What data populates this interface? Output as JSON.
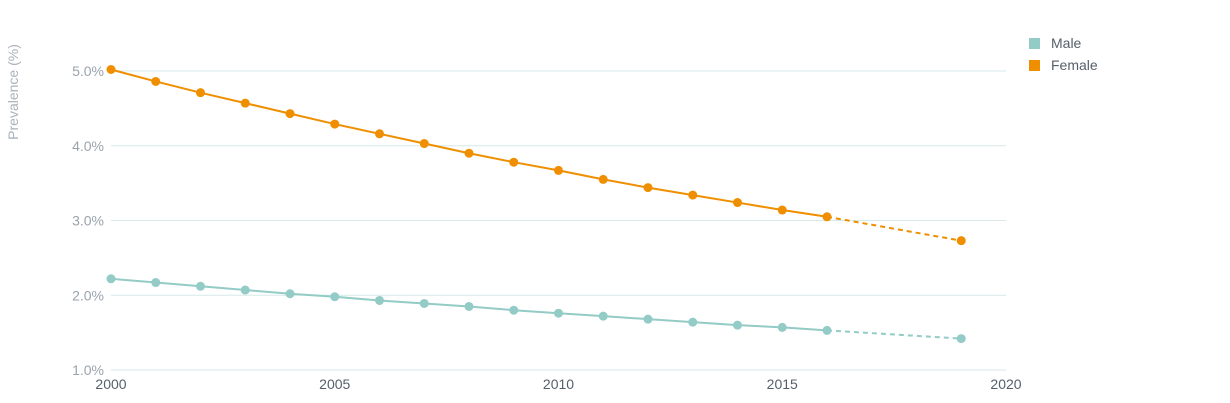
{
  "chart_data": {
    "type": "line",
    "title": "",
    "xlabel": "",
    "ylabel": "Prevalence (%)",
    "xlim": [
      2000,
      2020
    ],
    "ylim": [
      1.0,
      5.5
    ],
    "xticks": [
      2000,
      2005,
      2010,
      2015,
      2020
    ],
    "xtick_labels": [
      "2000",
      "2005",
      "2010",
      "2015",
      "2020"
    ],
    "yticks": [
      1.0,
      2.0,
      3.0,
      4.0,
      5.0
    ],
    "ytick_labels": [
      "1.0%",
      "2.0%",
      "3.0%",
      "4.0%",
      "5.0%"
    ],
    "grid": "horizontal",
    "legend": "top-right",
    "series": [
      {
        "name": "Male",
        "color": "#93cbc6",
        "x": [
          2000,
          2001,
          2002,
          2003,
          2004,
          2005,
          2006,
          2007,
          2008,
          2009,
          2010,
          2011,
          2012,
          2013,
          2014,
          2015,
          2016,
          2019
        ],
        "y": [
          2.22,
          2.17,
          2.12,
          2.07,
          2.02,
          1.98,
          1.93,
          1.89,
          1.85,
          1.8,
          1.76,
          1.72,
          1.68,
          1.64,
          1.6,
          1.57,
          1.53,
          1.42
        ],
        "dashed_from": 2016
      },
      {
        "name": "Female",
        "color": "#ef8f00",
        "x": [
          2000,
          2001,
          2002,
          2003,
          2004,
          2005,
          2006,
          2007,
          2008,
          2009,
          2010,
          2011,
          2012,
          2013,
          2014,
          2015,
          2016,
          2019
        ],
        "y": [
          5.02,
          4.86,
          4.71,
          4.57,
          4.43,
          4.29,
          4.16,
          4.03,
          3.9,
          3.78,
          3.67,
          3.55,
          3.44,
          3.34,
          3.24,
          3.14,
          3.05,
          2.73
        ],
        "dashed_from": 2016
      }
    ]
  }
}
